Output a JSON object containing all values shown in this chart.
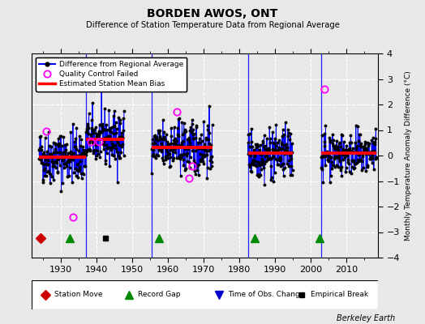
{
  "title": "BORDEN AWOS, ONT",
  "subtitle": "Difference of Station Temperature Data from Regional Average",
  "ylabel": "Monthly Temperature Anomaly Difference (°C)",
  "xlim": [
    1922,
    2019
  ],
  "ylim": [
    -4,
    4
  ],
  "yticks": [
    -4,
    -3,
    -2,
    -1,
    0,
    1,
    2,
    3,
    4
  ],
  "xticks": [
    1930,
    1940,
    1950,
    1960,
    1970,
    1980,
    1990,
    2000,
    2010
  ],
  "bg_color": "#e8e8e8",
  "plot_bg_color": "#e8e8e8",
  "grid_color": "white",
  "bias_segments": [
    {
      "xstart": 1924.0,
      "xend": 1937.2,
      "bias": -0.05
    },
    {
      "xstart": 1937.2,
      "xend": 1947.8,
      "bias": 0.65
    },
    {
      "xstart": 1955.5,
      "xend": 1972.5,
      "bias": 0.32
    },
    {
      "xstart": 1982.5,
      "xend": 1995.0,
      "bias": 0.08
    },
    {
      "xstart": 2003.0,
      "xend": 2018.5,
      "bias": 0.08
    }
  ],
  "vertical_lines": [
    1937.2,
    1955.5,
    1982.5,
    2003.0
  ],
  "record_gaps": [
    1932.5,
    1957.5,
    1984.5,
    2002.5
  ],
  "empirical_breaks": [
    1942.5
  ],
  "station_moves": [
    1924.5
  ],
  "obs_changes": [],
  "qc_failed_approx": [
    [
      1926.0,
      0.95
    ],
    [
      1933.5,
      -2.4
    ],
    [
      1938.5,
      0.55
    ],
    [
      1940.8,
      0.55
    ],
    [
      1962.5,
      1.7
    ],
    [
      1966.0,
      -0.9
    ],
    [
      1967.0,
      -0.4
    ],
    [
      2004.0,
      2.6
    ]
  ],
  "seed": 42,
  "data_segments": [
    {
      "tstart": 1924.0,
      "tend": 1937.2,
      "mean": -0.05,
      "std": 0.52
    },
    {
      "tstart": 1937.2,
      "tend": 1947.8,
      "mean": 0.65,
      "std": 0.52
    },
    {
      "tstart": 1955.5,
      "tend": 1972.5,
      "mean": 0.32,
      "std": 0.52
    },
    {
      "tstart": 1982.5,
      "tend": 1995.0,
      "mean": 0.08,
      "std": 0.5
    },
    {
      "tstart": 2003.0,
      "tend": 2018.5,
      "mean": 0.08,
      "std": 0.42
    }
  ],
  "berkeley_earth_text": "Berkeley Earth",
  "legend2_items": [
    {
      "label": "Station Move",
      "color": "#cc0000",
      "marker": "D",
      "ms": 6
    },
    {
      "label": "Record Gap",
      "color": "#008800",
      "marker": "^",
      "ms": 7
    },
    {
      "label": "Time of Obs. Change",
      "color": "#0000cc",
      "marker": "v",
      "ms": 7
    },
    {
      "label": "Empirical Break",
      "color": "black",
      "marker": "s",
      "ms": 5
    }
  ]
}
